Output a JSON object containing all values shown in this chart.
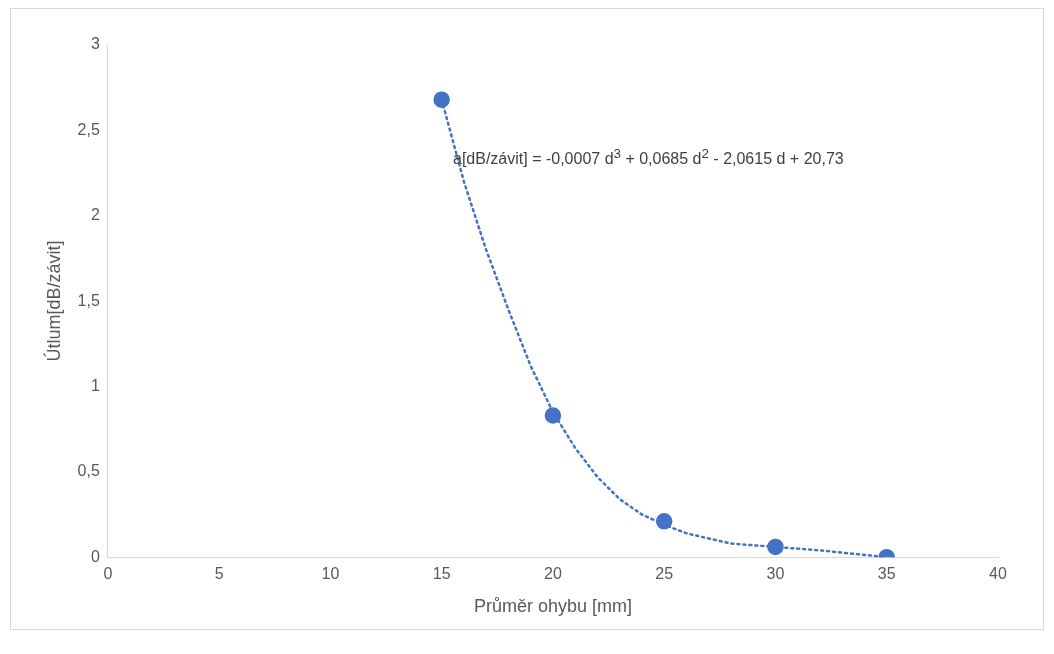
{
  "chart_data": {
    "type": "scatter",
    "xlabel": "Průměr ohybu [mm]",
    "ylabel": "Útlum[dB/závit]",
    "xlim": [
      0,
      40
    ],
    "xticks": [
      0,
      5,
      10,
      15,
      20,
      25,
      30,
      35,
      40
    ],
    "ylim": [
      0,
      3
    ],
    "yticks": [
      0,
      {
        "value": 0.5,
        "label": "0,5"
      },
      1,
      {
        "value": 1.5,
        "label": "1,5"
      },
      2,
      {
        "value": 2.5,
        "label": "2,5"
      },
      3
    ],
    "grid": false,
    "legend": false,
    "series": [
      {
        "type": "scatter",
        "color": "#4472c4",
        "marker": "circle",
        "x": [
          15,
          20,
          25,
          30,
          35
        ],
        "values": [
          2.68,
          0.83,
          0.21,
          0.06,
          0
        ]
      },
      {
        "type": "line",
        "color": "#4472c4",
        "marker": "none",
        "line_style": "dotted",
        "x": [
          15,
          16,
          17,
          18,
          19,
          20,
          21,
          22,
          23,
          24,
          25,
          26,
          27,
          28,
          29,
          30,
          32,
          35
        ],
        "values": [
          2.68,
          2.2,
          1.8,
          1.45,
          1.12,
          0.85,
          0.64,
          0.47,
          0.34,
          0.25,
          0.19,
          0.14,
          0.11,
          0.08,
          0.07,
          0.06,
          0.04,
          0
        ]
      }
    ],
    "annotations": [
      "a[dB/závit] = -0,0007 d$^{3}$ + 0,0685 d$^{2}$ - 2,0615 d + 20,73"
    ]
  }
}
